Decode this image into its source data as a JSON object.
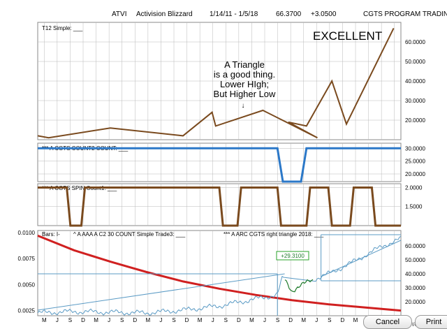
{
  "header": {
    "ticker": "ATVI",
    "company": "Activision Blizzard",
    "date_range": "1/14/11 - 1/5/18",
    "price": "66.3700",
    "change": "+3.0500",
    "source": "CGTS PROGRAM TRADING"
  },
  "colors": {
    "brown": "#7a4a1e",
    "blue": "#2b78c8",
    "red": "#d02020",
    "green": "#1e7a2a",
    "teal": "#5b9bc5",
    "label_green": "#2aa32a",
    "grid": "#b8b8b8"
  },
  "chart_data": [
    {
      "type": "line",
      "panel": "T12 Simple",
      "title": "T12 Simple: ___",
      "annotation": [
        "A Triangle",
        "is a good thing.",
        "Lower HIgh;",
        "But Higher Low"
      ],
      "big_label": "EXCELLENT",
      "arrow_label": "↓",
      "ylim": [
        10,
        70
      ],
      "yticks": [
        "20.0000",
        "30.0000",
        "40.0000",
        "50.0000",
        "60.0000"
      ],
      "yticks_values": [
        20,
        30,
        40,
        50,
        60
      ],
      "x": [
        0,
        0.03,
        0.2,
        0.4,
        0.48,
        0.49,
        0.62,
        0.77,
        0.69,
        0.74,
        0.81,
        0.85,
        0.98
      ],
      "series": [
        {
          "values": [
            12,
            11,
            16,
            12,
            24,
            17,
            25,
            11,
            19,
            17,
            40,
            18,
            67
          ]
        }
      ]
    },
    {
      "type": "line",
      "panel": "CGTS COUNT2",
      "title": "*** A CGTS COUNT2 COUNT: ___",
      "ylim": [
        17,
        32
      ],
      "yticks": [
        "20.0000",
        "25.0000",
        "30.0000"
      ],
      "yticks_values": [
        20,
        25,
        30
      ],
      "series": [
        {
          "x": [
            0,
            0.66,
            0.675,
            0.725,
            0.74,
            1
          ],
          "values": [
            30,
            30,
            17,
            17,
            30,
            30
          ]
        }
      ]
    },
    {
      "type": "line",
      "panel": "CGTS SPIN",
      "title": "*** A CGTS SPIN Count1: ___",
      "ylim": [
        1,
        2.1
      ],
      "yticks": [
        "1.5000",
        "2.0000"
      ],
      "yticks_values": [
        1.5,
        2.0
      ],
      "series": [
        {
          "x": [
            0,
            0.08,
            0.09,
            0.12,
            0.13,
            0.5,
            0.51,
            0.55,
            0.56,
            0.66,
            0.67,
            0.74,
            0.75,
            0.8,
            0.81,
            0.86,
            0.87,
            0.92,
            0.93,
            1
          ],
          "values": [
            2,
            2,
            1,
            1,
            2,
            2,
            1,
            1,
            2,
            2,
            1,
            1,
            2,
            2,
            1,
            1,
            2,
            2,
            1,
            1
          ]
        }
      ]
    },
    {
      "type": "line",
      "panel": "Bars",
      "titles": [
        "Bars: I-",
        "^ A AAA A C2 30 COUNT Simple Trade3: ___",
        "*** A ARC CGTS right triangle 2018: ___"
      ],
      "label": "+29.3100",
      "left_ylim": [
        0.002,
        0.0102
      ],
      "left_yticks": [
        "0.0025",
        "0.0050",
        "0.0075",
        "0.0100"
      ],
      "left_yticks_values": [
        0.0025,
        0.005,
        0.0075,
        0.01
      ],
      "right_ylim": [
        10,
        71
      ],
      "right_yticks": [
        "20.0000",
        "30.0000",
        "40.0000",
        "50.0000",
        "60.0000"
      ],
      "right_yticks_values": [
        20,
        30,
        40,
        50,
        60
      ],
      "price_anchors": {
        "x": [
          0,
          0.1,
          0.2,
          0.3,
          0.4,
          0.5,
          0.6,
          0.66,
          0.675,
          0.7,
          0.75,
          0.8,
          0.85,
          0.9,
          0.95,
          1
        ],
        "values": [
          12,
          13,
          12.5,
          12,
          14,
          17,
          22,
          25,
          38,
          28,
          35,
          40,
          46,
          53,
          60,
          65
        ]
      },
      "red_curve": {
        "x": [
          0,
          0.1,
          0.2,
          0.3,
          0.4,
          0.5,
          0.6,
          0.7,
          0.8,
          0.9,
          1
        ],
        "values": [
          0.0097,
          0.0083,
          0.0072,
          0.0062,
          0.0053,
          0.0046,
          0.004,
          0.0035,
          0.0031,
          0.0028,
          0.0025
        ]
      },
      "xticks": [
        "M",
        "J",
        "S",
        "D",
        "M",
        "J",
        "S",
        "D",
        "M",
        "J",
        "S",
        "D",
        "M",
        "J",
        "S",
        "D",
        "M",
        "J",
        "S",
        "D",
        "M",
        "J",
        "S",
        "D",
        "M",
        "J",
        "S",
        "D"
      ]
    }
  ],
  "buttons": {
    "cancel": "Cancel",
    "print": "Print"
  },
  "corner_label": "Weekly"
}
